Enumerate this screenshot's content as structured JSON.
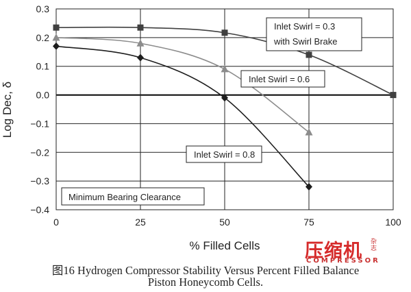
{
  "chart_data": {
    "type": "line",
    "title": "",
    "xlabel": "% Filled Cells",
    "ylabel": "Log Dec, δ",
    "xlim": [
      0,
      100
    ],
    "ylim": [
      -0.4,
      0.3
    ],
    "xticks": [
      0,
      25,
      50,
      75,
      100
    ],
    "xtick_labels": [
      "0",
      "25",
      "50",
      "75",
      "100"
    ],
    "yticks": [
      -0.4,
      -0.3,
      -0.2,
      -0.1,
      0.0,
      0.1,
      0.2,
      0.3
    ],
    "ytick_labels": [
      "−0.4",
      "−0.3",
      "−0.2",
      "−0.1",
      "0.0",
      "0.1",
      "0.2",
      "0.3"
    ],
    "grid": true,
    "series": [
      {
        "name": "Inlet Swirl = 0.3 with Swirl Brake",
        "label_lines": [
          "Inlet Swirl = 0.3",
          "with Swirl Brake"
        ],
        "marker": "square",
        "color": "#404040",
        "x": [
          0,
          25,
          50,
          75,
          100
        ],
        "y": [
          0.235,
          0.235,
          0.217,
          0.14,
          0.0
        ]
      },
      {
        "name": "Inlet Swirl = 0.6",
        "label_lines": [
          "Inlet Swirl = 0.6"
        ],
        "marker": "triangle",
        "color": "#8c8c8c",
        "x": [
          0,
          25,
          50,
          75
        ],
        "y": [
          0.2,
          0.18,
          0.09,
          -0.13
        ]
      },
      {
        "name": "Inlet Swirl = 0.8",
        "label_lines": [
          "Inlet Swirl = 0.8"
        ],
        "marker": "diamond",
        "color": "#1e1e1e",
        "x": [
          0,
          25,
          50,
          75
        ],
        "y": [
          0.17,
          0.13,
          -0.01,
          -0.32
        ]
      }
    ],
    "annotations": [
      "Minimum Bearing Clearance"
    ]
  },
  "caption": {
    "line1": "图16  Hydrogen Compressor Stability Versus Percent Filled Balance",
    "line2": "Piston Honeycomb Cells."
  },
  "watermark": {
    "main": "压缩机",
    "sub": "COMPRESSOR",
    "side": "杂志",
    "color": "#d62b2b"
  }
}
